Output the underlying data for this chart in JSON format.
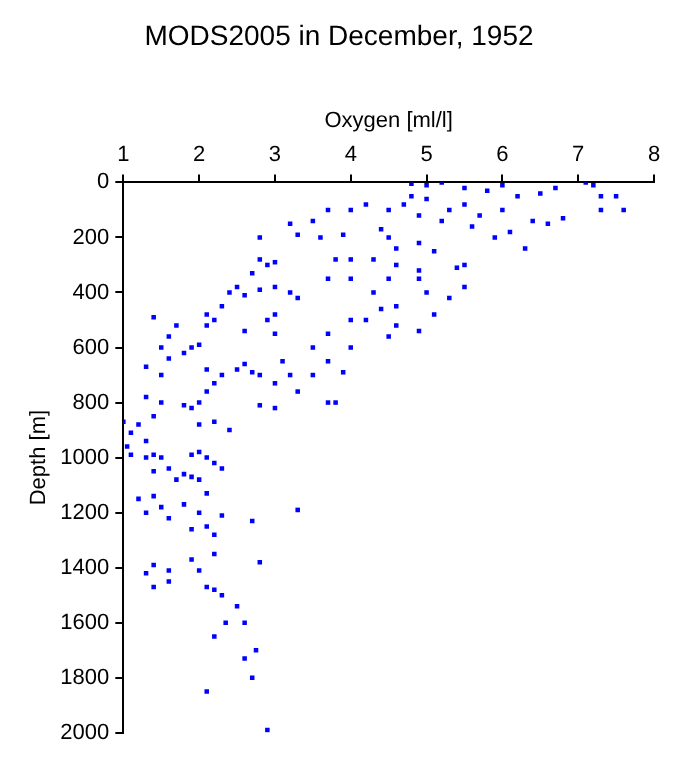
{
  "chart_data": {
    "type": "scatter",
    "title": "MODS2005 in December, 1952",
    "xlabel": "Oxygen [ml/l]",
    "ylabel": "Depth [m]",
    "marker": "square",
    "grid": false,
    "legend": false,
    "xlim": [
      1,
      8
    ],
    "xticks": [
      1,
      2,
      3,
      4,
      5,
      6,
      7,
      8
    ],
    "ylim": [
      2000,
      0
    ],
    "yticks": [
      0,
      200,
      400,
      600,
      800,
      1000,
      1200,
      1400,
      1600,
      1800,
      2000
    ],
    "series": [
      {
        "color": "#0000ff",
        "x": [
          4.8,
          5,
          5.2,
          5.5,
          5.8,
          6,
          6.2,
          6.5,
          6.7,
          7.1,
          7.2,
          7.3,
          7.5,
          7.3,
          7.6,
          6.8,
          6.6,
          6.4,
          6,
          5.5,
          5,
          4.8,
          4.7,
          5.3,
          5.7,
          6.1,
          6.3,
          5.9,
          5.6,
          5.2,
          4.9,
          4.5,
          4.2,
          4,
          3.7,
          3.5,
          3.2,
          3.3,
          3.6,
          3.9,
          2.8,
          4.4,
          4.5,
          4.6,
          4.9,
          5.1,
          5.5,
          5.4,
          4.9,
          4.6,
          4.3,
          4,
          3.8,
          4,
          3.7,
          4.5,
          4.9,
          5,
          5.3,
          5.5,
          4.3,
          4.4,
          4.6,
          5.1,
          4,
          4.2,
          4.6,
          4.9,
          4.5,
          4,
          3.5,
          3.7,
          3.7,
          3.9,
          3.5,
          3.7,
          3.8,
          2.8,
          3,
          2.9,
          2.7,
          3,
          2.8,
          2.5,
          2.4,
          2.6,
          3.2,
          3.3,
          3,
          2.9,
          3,
          2.6,
          2.3,
          2.1,
          2.2,
          2.1,
          2,
          1.9,
          1.8,
          1.6,
          1.7,
          1.4,
          1.5,
          1.6,
          1.3,
          1.5,
          2.1,
          2.3,
          2.5,
          2.7,
          2.8,
          2.6,
          3.1,
          3.2,
          3.3,
          3,
          2.2,
          2.1,
          2,
          1.8,
          1.5,
          1.3,
          1.4,
          1.2,
          1,
          1.1,
          1.9,
          2,
          2.2,
          2.4,
          2.8,
          3,
          1.05,
          1.1,
          1.3,
          1.3,
          1.4,
          1.5,
          1.4,
          1.6,
          1.7,
          1.9,
          2,
          2.1,
          2.2,
          2.3,
          1.8,
          1.9,
          2,
          2.1,
          1.8,
          2,
          2.1,
          2.2,
          1.9,
          1.5,
          1.3,
          1.2,
          1.4,
          1.6,
          2.3,
          2.7,
          3.3,
          1.4,
          1.6,
          1.3,
          1.4,
          1.6,
          1.9,
          2,
          2.2,
          2.1,
          2.2,
          2.3,
          2.5,
          2.35,
          2.6,
          2.2,
          2.75,
          2.8,
          2.6,
          2.7,
          2.1,
          2.9
        ],
        "values": [
          5,
          10,
          0,
          20,
          30,
          10,
          50,
          40,
          20,
          0,
          10,
          50,
          50,
          100,
          100,
          130,
          150,
          140,
          100,
          80,
          60,
          50,
          80,
          100,
          120,
          180,
          240,
          200,
          160,
          140,
          120,
          100,
          80,
          100,
          100,
          140,
          150,
          190,
          200,
          190,
          200,
          170,
          200,
          240,
          220,
          250,
          300,
          310,
          320,
          300,
          280,
          280,
          280,
          350,
          350,
          350,
          350,
          400,
          420,
          380,
          400,
          460,
          450,
          480,
          500,
          500,
          520,
          540,
          560,
          600,
          600,
          550,
          650,
          690,
          700,
          800,
          800,
          280,
          290,
          300,
          330,
          380,
          390,
          380,
          400,
          410,
          400,
          420,
          480,
          500,
          550,
          540,
          450,
          480,
          500,
          520,
          590,
          600,
          620,
          560,
          520,
          490,
          600,
          640,
          670,
          700,
          680,
          700,
          680,
          690,
          700,
          660,
          650,
          700,
          760,
          730,
          730,
          760,
          800,
          810,
          800,
          780,
          850,
          880,
          870,
          910,
          820,
          880,
          870,
          900,
          810,
          820,
          960,
          990,
          940,
          1000,
          990,
          1000,
          1050,
          1040,
          1080,
          990,
          980,
          1000,
          1020,
          1040,
          1060,
          1070,
          1080,
          1130,
          1170,
          1200,
          1250,
          1280,
          1260,
          1180,
          1200,
          1150,
          1140,
          1220,
          1210,
          1230,
          1190,
          1390,
          1410,
          1420,
          1470,
          1450,
          1370,
          1410,
          1350,
          1470,
          1480,
          1500,
          1540,
          1600,
          1600,
          1650,
          1700,
          1380,
          1730,
          1800,
          1850,
          1990
        ]
      }
    ]
  }
}
